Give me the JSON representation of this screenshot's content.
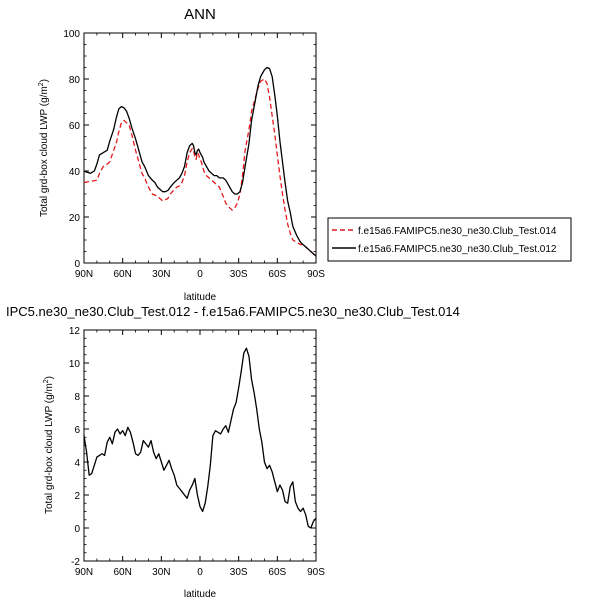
{
  "chart_data": [
    {
      "type": "line",
      "title": "ANN",
      "xlabel": "latitude",
      "ylabel": "Total grd-box cloud LWP (g/m²)",
      "ylabel_main": "Total grd-box cloud LWP (g/m",
      "ylabel_sup": "2",
      "ylabel_close": ")",
      "xlim": [
        90,
        -90
      ],
      "ylim": [
        0,
        100
      ],
      "xticks": [
        90,
        60,
        30,
        0,
        -30,
        -60,
        -90
      ],
      "xticklabels": [
        "90N",
        "60N",
        "30N",
        "0",
        "30S",
        "60S",
        "90S"
      ],
      "yticks": [
        0,
        20,
        40,
        60,
        80,
        100
      ],
      "yticklabels": [
        "0",
        "20",
        "40",
        "60",
        "80",
        "100"
      ],
      "legend": "right",
      "grid": false,
      "series": [
        {
          "name": "f.e15a6.FAMIPC5.ne30_ne30.Club_Test.014",
          "color": "#e41a1c",
          "dash": "dashed",
          "x": [
            90,
            85,
            80,
            78,
            75,
            72,
            70,
            67,
            65,
            63,
            61,
            59,
            57,
            55,
            53,
            50,
            47,
            45,
            43,
            40,
            37,
            35,
            33,
            31,
            29,
            27,
            25,
            23,
            20,
            18,
            16,
            14,
            12,
            10,
            8,
            6,
            5,
            4,
            3,
            2,
            1,
            0,
            -1,
            -2,
            -3,
            -5,
            -7,
            -9,
            -11,
            -13,
            -15,
            -18,
            -20,
            -23,
            -25,
            -27,
            -29,
            -31,
            -33,
            -35,
            -38,
            -40,
            -43,
            -45,
            -47,
            -50,
            -52,
            -54,
            -56,
            -58,
            -60,
            -62,
            -64,
            -66,
            -68,
            -70,
            -72,
            -75,
            -78,
            -80,
            -82,
            -84,
            -86,
            -88,
            -90
          ],
          "y": [
            35,
            35.5,
            36,
            39,
            42,
            43,
            44,
            49,
            52,
            57,
            61,
            62,
            61,
            60,
            56,
            49,
            43,
            39,
            37,
            33,
            30,
            29.5,
            29,
            28,
            27,
            27.5,
            28,
            30,
            32,
            33,
            33.5,
            35,
            38,
            44,
            48,
            49.8,
            49,
            46,
            45,
            48,
            47,
            45,
            44,
            42,
            40,
            38,
            37,
            36,
            35,
            34,
            33,
            29,
            26,
            24,
            23,
            24,
            26,
            30,
            38,
            49,
            58,
            66,
            72,
            76,
            79,
            80,
            78,
            72,
            64,
            56,
            47,
            38,
            30,
            23,
            17,
            13,
            10,
            9,
            8,
            8,
            7,
            6,
            5,
            4,
            3
          ]
        },
        {
          "name": "f.e15a6.FAMIPC5.ne30_ne30.Club_Test.012",
          "color": "#000000",
          "dash": "solid",
          "x": [
            90,
            88,
            85,
            82,
            80,
            78,
            75,
            72,
            70,
            67,
            65,
            63,
            61,
            59,
            57,
            55,
            53,
            50,
            47,
            45,
            43,
            40,
            37,
            35,
            33,
            31,
            29,
            27,
            25,
            23,
            20,
            18,
            16,
            14,
            12,
            10,
            8,
            6,
            5,
            4,
            3,
            2,
            1,
            0,
            -1,
            -2,
            -3,
            -5,
            -7,
            -9,
            -11,
            -13,
            -15,
            -18,
            -20,
            -23,
            -25,
            -27,
            -29,
            -31,
            -33,
            -35,
            -38,
            -40,
            -43,
            -45,
            -47,
            -50,
            -52,
            -54,
            -56,
            -58,
            -60,
            -62,
            -64,
            -66,
            -68,
            -70,
            -72,
            -75,
            -78,
            -80,
            -82,
            -84,
            -86,
            -88,
            -90
          ],
          "y": [
            40,
            39.5,
            39,
            40,
            43,
            47,
            48,
            49,
            53,
            58,
            63,
            67,
            68,
            67.5,
            66,
            63,
            59,
            54,
            48,
            44,
            42,
            38,
            36,
            35,
            33,
            32,
            31,
            31,
            31.5,
            33,
            35,
            36,
            37,
            39,
            42,
            48,
            51,
            52,
            51,
            48,
            47,
            49,
            49.5,
            48,
            47,
            46,
            44,
            42,
            40,
            39,
            38,
            38,
            37,
            37,
            36,
            33,
            31,
            30,
            30,
            31,
            35,
            42,
            52,
            62,
            71,
            77,
            81,
            84,
            85,
            84.5,
            81,
            73,
            64,
            53,
            44,
            35,
            27,
            22,
            16,
            12,
            9,
            8,
            7,
            6,
            5,
            4,
            3
          ]
        }
      ]
    },
    {
      "type": "line",
      "title": "IPC5.ne30_ne30.Club_Test.012 - f.e15a6.FAMIPC5.ne30_ne30.Club_Test.014",
      "xlabel": "latitude",
      "ylabel": "Total grd-box cloud LWP (g/m²)",
      "ylabel_main": "Total grd-box cloud LWP (g/m",
      "ylabel_sup": "2",
      "ylabel_close": ")",
      "xlim": [
        90,
        -90
      ],
      "ylim": [
        -2,
        12
      ],
      "xticks": [
        90,
        60,
        30,
        0,
        -30,
        -60,
        -90
      ],
      "xticklabels": [
        "90N",
        "60N",
        "30N",
        "0",
        "30S",
        "60S",
        "90S"
      ],
      "yticks": [
        -2,
        0,
        2,
        4,
        6,
        8,
        10,
        12
      ],
      "yticklabels": [
        "-2",
        "0",
        "2",
        "4",
        "6",
        "8",
        "10",
        "12"
      ],
      "grid": false,
      "series": [
        {
          "color": "#000000",
          "dash": "solid",
          "x": [
            90,
            88,
            86,
            84,
            82,
            80,
            78,
            76,
            74,
            72,
            70,
            68,
            66,
            64,
            62,
            60,
            58,
            56,
            54,
            52,
            50,
            48,
            46,
            44,
            42,
            40,
            38,
            36,
            34,
            32,
            30,
            28,
            26,
            24,
            22,
            20,
            18,
            16,
            14,
            12,
            10,
            8,
            6,
            4,
            2,
            0,
            -2,
            -4,
            -6,
            -8,
            -10,
            -12,
            -14,
            -16,
            -18,
            -20,
            -22,
            -24,
            -26,
            -28,
            -30,
            -32,
            -34,
            -36,
            -38,
            -40,
            -42,
            -44,
            -46,
            -48,
            -50,
            -52,
            -54,
            -56,
            -58,
            -60,
            -62,
            -64,
            -66,
            -68,
            -70,
            -72,
            -74,
            -76,
            -78,
            -80,
            -82,
            -84,
            -86,
            -88,
            -90
          ],
          "y": [
            5.6,
            4.6,
            3.2,
            3.3,
            3.8,
            4.3,
            4.4,
            4.5,
            4.4,
            5.2,
            5.5,
            5.1,
            5.8,
            6.0,
            5.7,
            5.9,
            5.6,
            6.1,
            5.8,
            5.2,
            4.5,
            4.4,
            4.6,
            5.3,
            5.1,
            4.9,
            5.3,
            4.6,
            4.2,
            4.5,
            4.0,
            3.5,
            3.8,
            4.1,
            3.6,
            3.2,
            2.6,
            2.4,
            2.2,
            2.0,
            1.8,
            2.3,
            2.6,
            3.0,
            2.0,
            1.3,
            1.0,
            1.5,
            2.5,
            3.8,
            5.6,
            5.9,
            5.8,
            5.7,
            6.0,
            6.2,
            5.8,
            6.5,
            7.2,
            7.6,
            8.5,
            9.5,
            10.6,
            10.9,
            10.4,
            9.0,
            8.2,
            7.2,
            6.0,
            5.2,
            4.0,
            3.6,
            3.8,
            3.4,
            2.8,
            2.2,
            2.6,
            2.3,
            1.6,
            1.5,
            2.5,
            2.8,
            1.6,
            1.2,
            1.0,
            1.2,
            0.8,
            0.1,
            0.0,
            0.4,
            0.6
          ]
        }
      ]
    }
  ]
}
